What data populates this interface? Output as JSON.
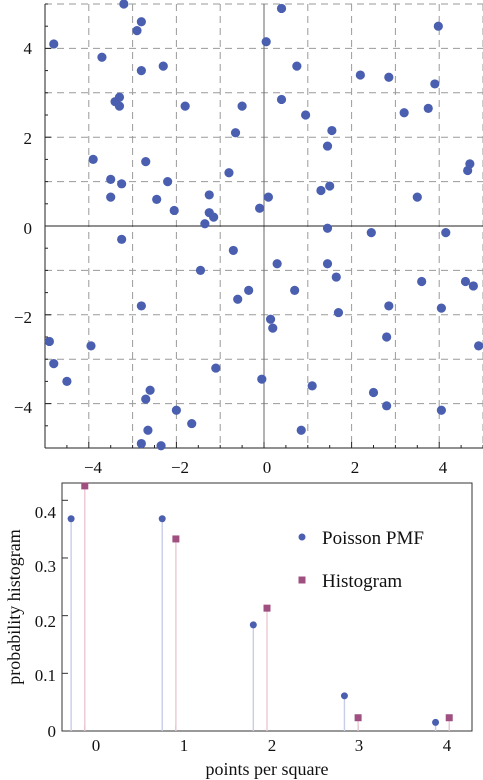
{
  "chart_data": [
    {
      "type": "scatter",
      "title": "",
      "xlabel": "",
      "ylabel": "",
      "xlim": [
        -5,
        5
      ],
      "ylim": [
        -5,
        5
      ],
      "grid": true,
      "x_ticks": [
        "−4",
        "−2",
        "0",
        "2",
        "4"
      ],
      "y_ticks": [
        "4",
        "2",
        "0",
        "−2",
        "−4"
      ],
      "color": "#4a5fb0",
      "points": [
        [
          -4.8,
          4.1
        ],
        [
          -3.7,
          3.8
        ],
        [
          -3.2,
          5.0
        ],
        [
          -2.9,
          4.4
        ],
        [
          -2.8,
          4.6
        ],
        [
          -2.3,
          3.6
        ],
        [
          -2.8,
          3.5
        ],
        [
          -3.4,
          2.8
        ],
        [
          -3.3,
          2.9
        ],
        [
          -3.3,
          2.7
        ],
        [
          -1.8,
          2.7
        ],
        [
          -3.9,
          1.5
        ],
        [
          -2.7,
          1.45
        ],
        [
          -3.5,
          1.05
        ],
        [
          -3.25,
          0.95
        ],
        [
          -2.2,
          1.0
        ],
        [
          -3.5,
          0.65
        ],
        [
          -2.45,
          0.6
        ],
        [
          -2.05,
          0.35
        ],
        [
          -1.25,
          0.7
        ],
        [
          -1.25,
          0.3
        ],
        [
          -1.15,
          0.2
        ],
        [
          -1.35,
          0.05
        ],
        [
          -3.25,
          -0.3
        ],
        [
          -0.8,
          1.2
        ],
        [
          -0.65,
          2.1
        ],
        [
          -0.5,
          2.7
        ],
        [
          -0.1,
          0.4
        ],
        [
          0.05,
          4.15
        ],
        [
          0.4,
          4.9
        ],
        [
          0.4,
          2.85
        ],
        [
          0.75,
          3.6
        ],
        [
          0.95,
          2.5
        ],
        [
          0.1,
          0.65
        ],
        [
          1.3,
          0.8
        ],
        [
          1.5,
          0.9
        ],
        [
          1.45,
          1.8
        ],
        [
          1.55,
          2.15
        ],
        [
          1.45,
          -0.05
        ],
        [
          2.2,
          3.4
        ],
        [
          2.85,
          3.35
        ],
        [
          3.2,
          2.55
        ],
        [
          3.75,
          2.65
        ],
        [
          3.9,
          3.2
        ],
        [
          3.98,
          4.5
        ],
        [
          3.5,
          0.65
        ],
        [
          4.65,
          1.25
        ],
        [
          4.7,
          1.4
        ],
        [
          -0.7,
          -0.55
        ],
        [
          -1.45,
          -1.0
        ],
        [
          -0.6,
          -1.65
        ],
        [
          -0.35,
          -1.45
        ],
        [
          0.3,
          -0.85
        ],
        [
          1.45,
          -0.85
        ],
        [
          1.65,
          -1.15
        ],
        [
          0.7,
          -1.45
        ],
        [
          -2.8,
          -1.8
        ],
        [
          -1.1,
          -3.2
        ],
        [
          0.15,
          -2.1
        ],
        [
          0.2,
          -2.3
        ],
        [
          1.7,
          -1.95
        ],
        [
          2.45,
          -0.15
        ],
        [
          3.6,
          -1.25
        ],
        [
          4.15,
          -0.15
        ],
        [
          4.05,
          -1.85
        ],
        [
          4.6,
          -1.25
        ],
        [
          4.78,
          -1.35
        ],
        [
          4.9,
          -2.7
        ],
        [
          2.8,
          -2.5
        ],
        [
          2.85,
          -1.8
        ],
        [
          -4.9,
          -2.6
        ],
        [
          -4.8,
          -3.1
        ],
        [
          -4.5,
          -3.5
        ],
        [
          -3.95,
          -2.7
        ],
        [
          -0.05,
          -3.45
        ],
        [
          1.1,
          -3.6
        ],
        [
          2.5,
          -3.75
        ],
        [
          2.8,
          -4.05
        ],
        [
          4.05,
          -4.15
        ],
        [
          -2.6,
          -3.7
        ],
        [
          -2.7,
          -3.9
        ],
        [
          -2.65,
          -4.6
        ],
        [
          -2.8,
          -4.9
        ],
        [
          -2.35,
          -4.95
        ],
        [
          -2.0,
          -4.15
        ],
        [
          -1.65,
          -4.45
        ],
        [
          0.85,
          -4.6
        ]
      ]
    },
    {
      "type": "bar",
      "title": "",
      "xlabel": "points per square",
      "ylabel": "probability histogram",
      "categories": [
        0,
        1,
        2,
        3,
        4
      ],
      "xlim": [
        -0.25,
        4.25
      ],
      "ylim": [
        0,
        0.43
      ],
      "y_ticks": [
        "0",
        "0.1",
        "0.2",
        "0.3",
        "0.4"
      ],
      "x_ticks": [
        "0",
        "1",
        "2",
        "3",
        "4"
      ],
      "series": [
        {
          "name": "Poisson PMF",
          "marker": "circle",
          "color": "#4a5fb0",
          "stem_color": "#c8cde8",
          "offset": -0.15,
          "values": [
            0.368,
            0.368,
            0.184,
            0.061,
            0.015
          ]
        },
        {
          "name": "Histogram",
          "marker": "square",
          "color": "#a05080",
          "stem_color": "#ecc7d3",
          "offset": 0.0,
          "values": [
            0.425,
            0.333,
            0.213,
            0.023,
            0.023
          ]
        }
      ],
      "legend": "top-right"
    }
  ]
}
